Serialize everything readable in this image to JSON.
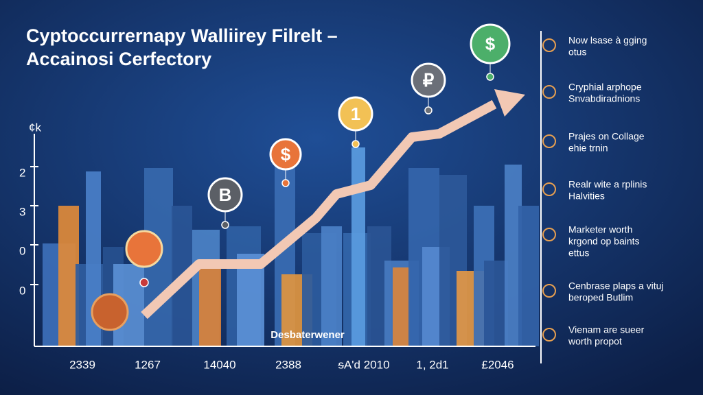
{
  "header": {
    "title": [
      "Cyptoccurrernapy Walliirey Filrelt –",
      "Accainosi Cerfectory"
    ]
  },
  "axis": {
    "unit": "¢k",
    "y_labels": [
      "2",
      "3",
      "0",
      "0"
    ],
    "x_labels": [
      "2339",
      "1267",
      "14040",
      "2388",
      "ᵴA'd 2010",
      "1, 2d1",
      "£2046"
    ]
  },
  "coins": [
    "$",
    "₽",
    "1",
    "$",
    "B"
  ],
  "center_label": "Desbaterwener",
  "list": [
    [
      "Now lsase à gging",
      "otus"
    ],
    [
      "Cryphial arphope",
      "Snvabdiradnions"
    ],
    [
      "Prajes on Collage",
      "ehie trnin"
    ],
    [
      "Realr wite a rplinis",
      "Halvities"
    ],
    [
      "Marketer worth",
      "krgond op baints",
      "ettus"
    ],
    [
      "Cenbrase plaps a vituj",
      "beroped Butlim"
    ],
    [
      "Vienam are sueer",
      "worth propot"
    ]
  ]
}
